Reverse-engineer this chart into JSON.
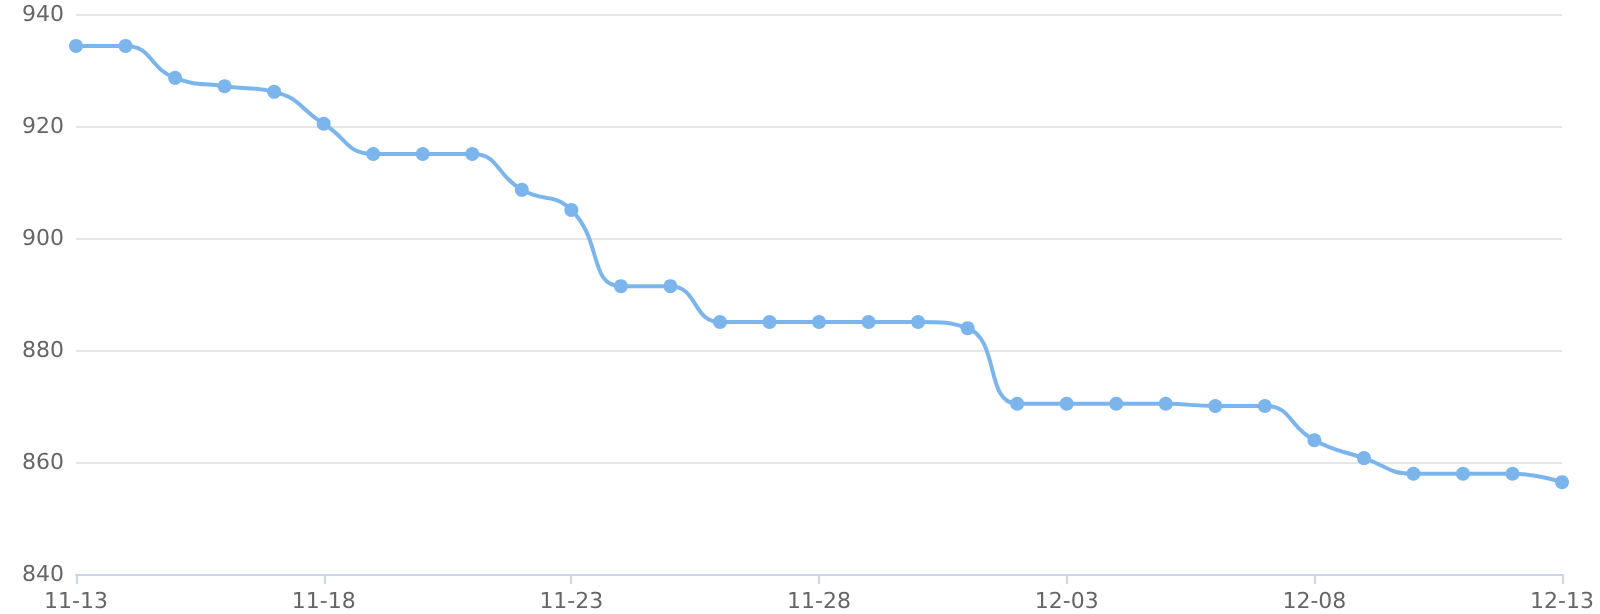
{
  "chart_data": {
    "type": "line",
    "categories": [
      "11-13",
      null,
      null,
      null,
      null,
      "11-18",
      null,
      null,
      null,
      null,
      "11-23",
      null,
      null,
      null,
      null,
      "11-28",
      null,
      null,
      null,
      null,
      "12-03",
      null,
      null,
      null,
      null,
      "12-08",
      null,
      null,
      null,
      null,
      "12-13"
    ],
    "series": [
      {
        "color": "#7cb5ec",
        "values": [
          934.3,
          934.3,
          928.6,
          927.1,
          926.1,
          920.4,
          915.0,
          915.0,
          915.0,
          908.6,
          905.0,
          891.4,
          891.4,
          885.0,
          885.0,
          885.0,
          885.0,
          885.0,
          883.9,
          870.4,
          870.4,
          870.4,
          870.4,
          870.0,
          870.0,
          863.9,
          860.7,
          857.9,
          857.9,
          857.9,
          856.4
        ]
      }
    ],
    "ylim": [
      840,
      940
    ],
    "yticks": [
      840,
      860,
      880,
      900,
      920,
      940
    ],
    "grid": "y",
    "marker": "circle",
    "line_style": "solid"
  }
}
